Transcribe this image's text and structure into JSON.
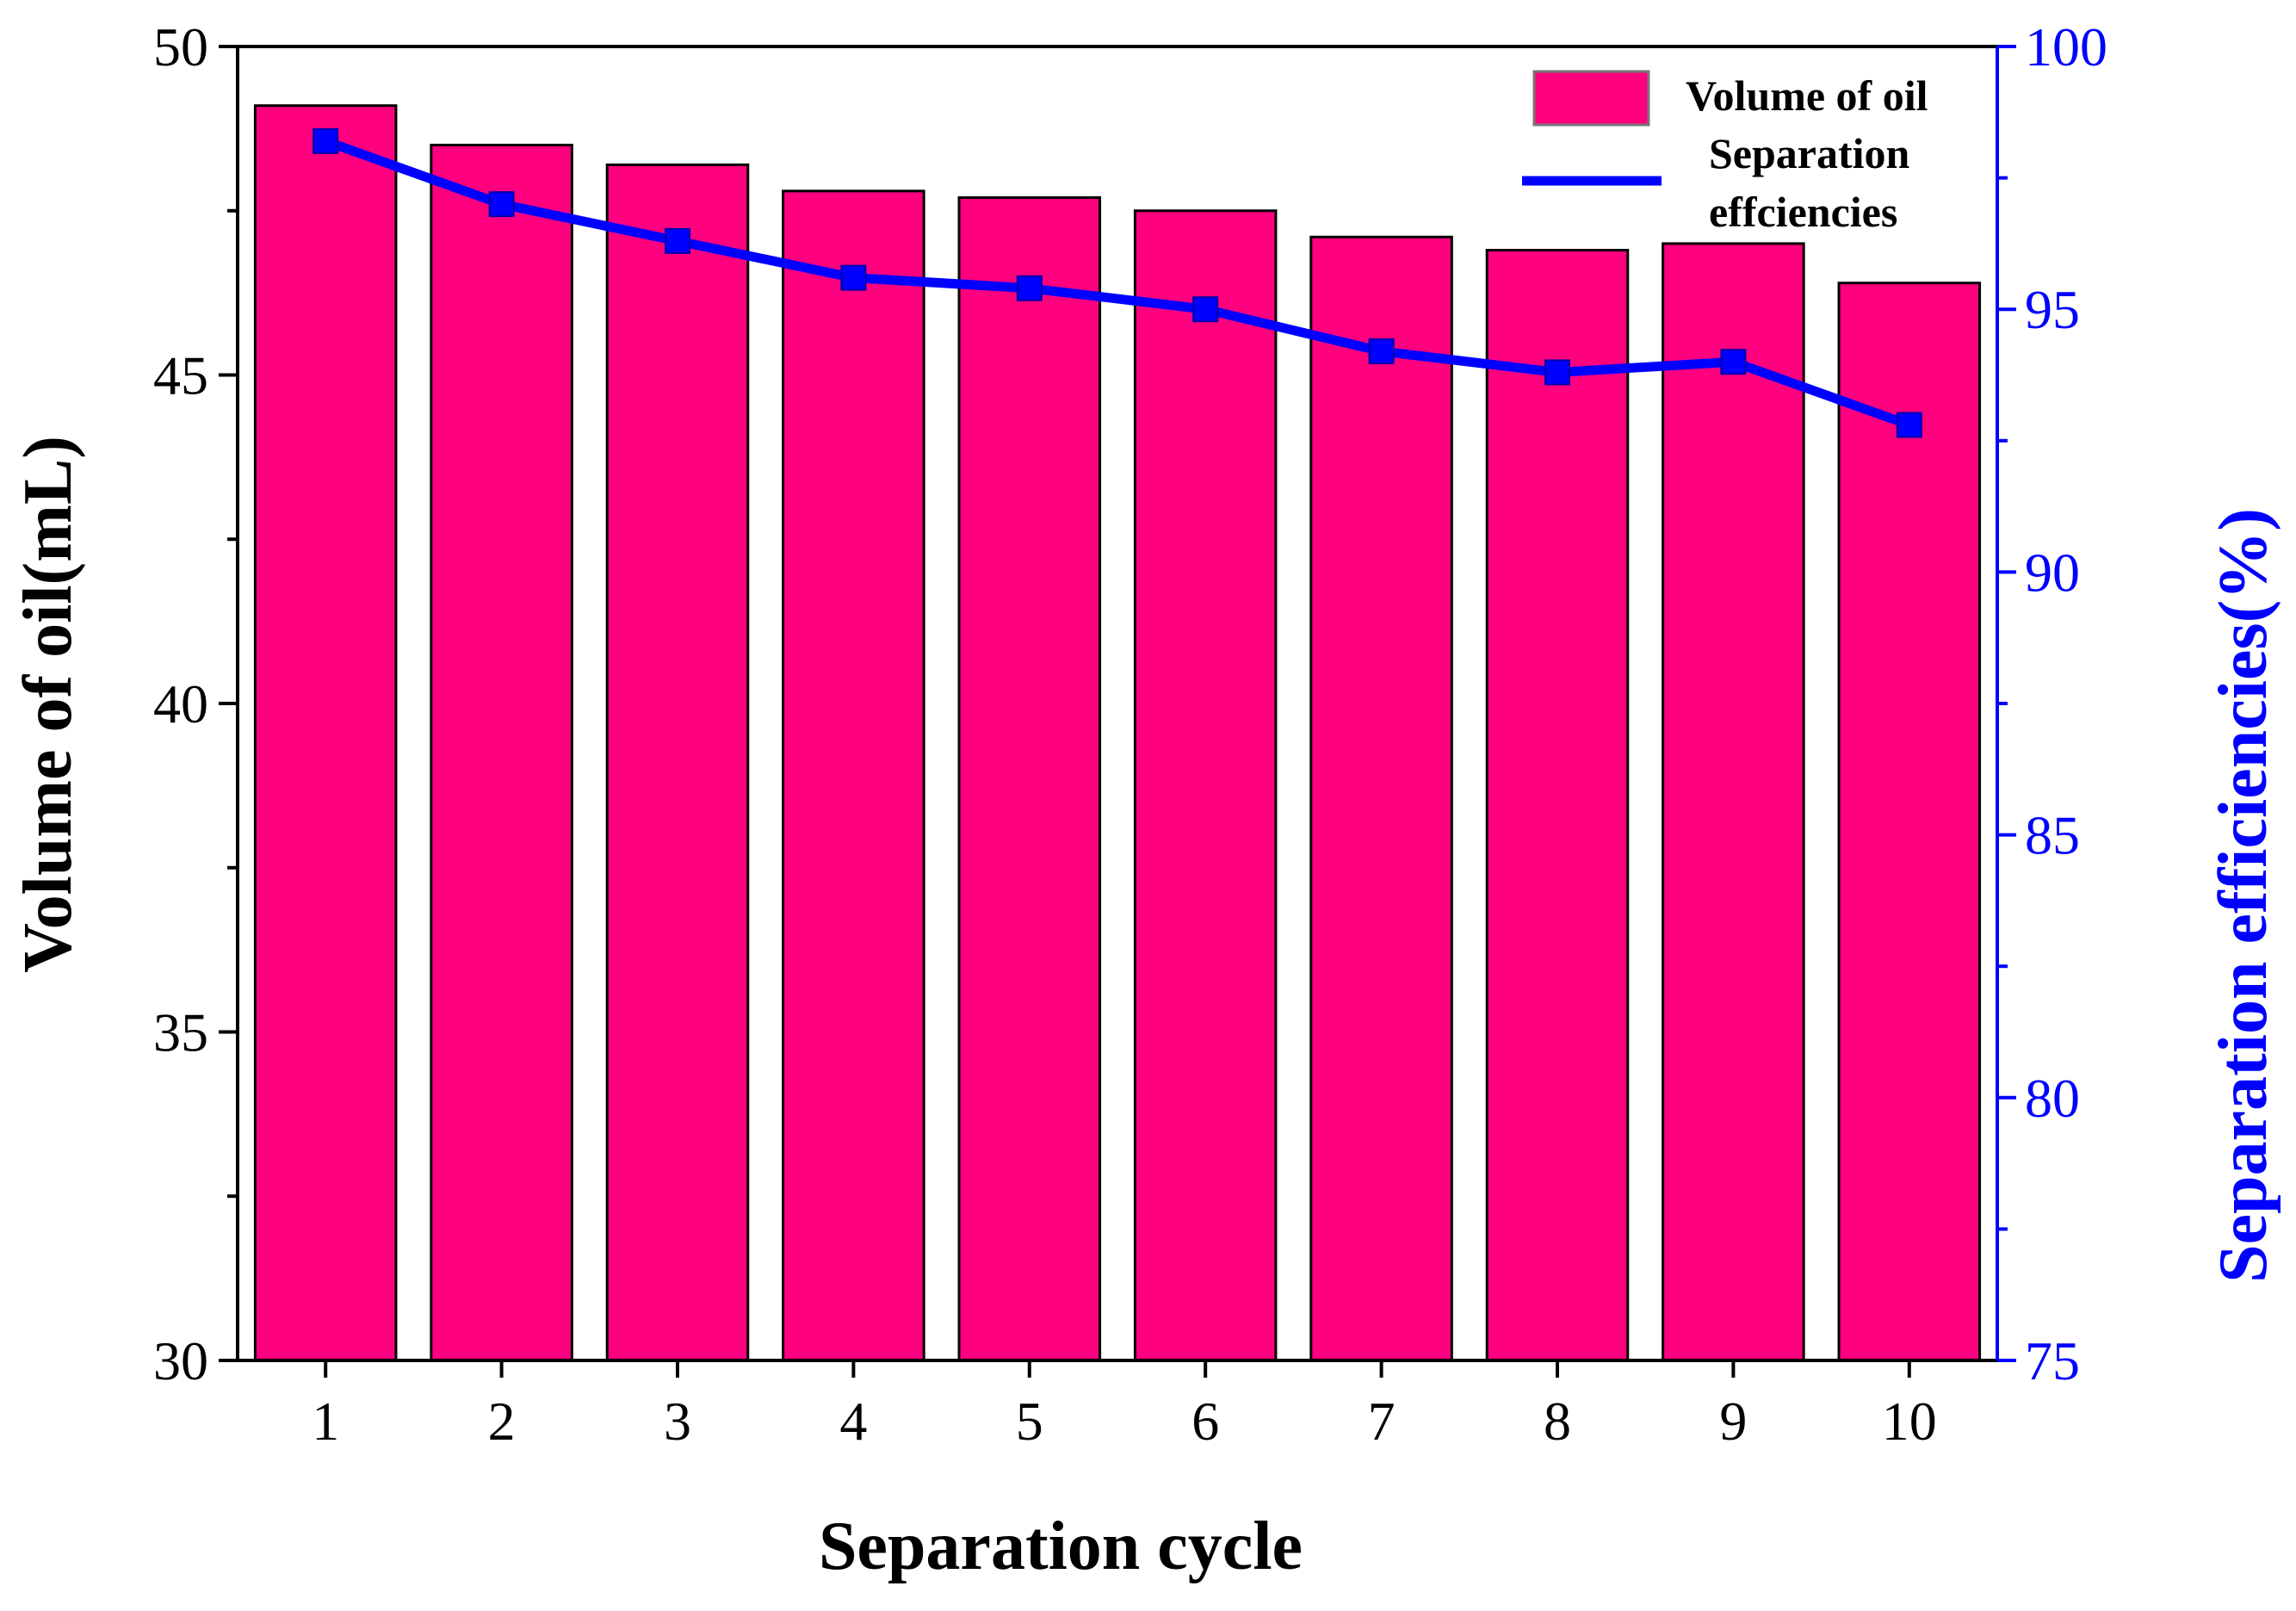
{
  "chart_data": {
    "type": "bar",
    "categories": [
      "1",
      "2",
      "3",
      "4",
      "5",
      "6",
      "7",
      "8",
      "9",
      "10"
    ],
    "series": [
      {
        "name": "Volume of oil",
        "type": "bar",
        "axis": "left",
        "color": "#ff007f",
        "values": [
          49.1,
          48.5,
          48.2,
          47.8,
          47.7,
          47.5,
          47.1,
          46.9,
          47.0,
          46.4
        ]
      },
      {
        "name": "Separation effciencies",
        "type": "line",
        "axis": "right",
        "color": "#0000ff",
        "values": [
          98.2,
          97.0,
          96.3,
          95.6,
          95.4,
          95.0,
          94.2,
          93.8,
          94.0,
          92.8
        ]
      }
    ],
    "xlabel": "Separation cycle",
    "ylabel": "Volume of oil(mL)",
    "y2label": "Separation efficiencies(%)",
    "ylim": [
      30,
      50
    ],
    "y2lim": [
      75,
      100
    ],
    "yticks": [
      "30",
      "35",
      "40",
      "45",
      "50"
    ],
    "y2ticks": [
      "75",
      "80",
      "85",
      "90",
      "95",
      "100"
    ],
    "legend": {
      "position": "top-right",
      "bar_label": "Volume of oil",
      "line_label_line1": "Separation",
      "line_label_line2": "effciencies"
    },
    "grid": false
  }
}
